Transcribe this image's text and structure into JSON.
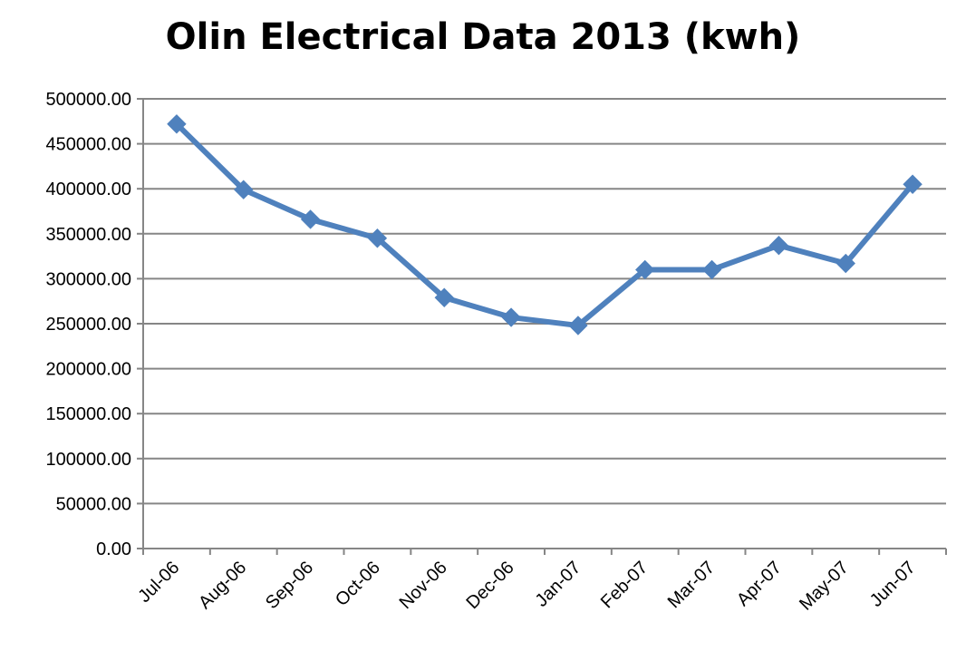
{
  "chart_data": {
    "type": "line",
    "title": "Olin Electrical Data 2013 (kwh)",
    "xlabel": "",
    "ylabel": "",
    "categories": [
      "Jul-06",
      "Aug-06",
      "Sep-06",
      "Oct-06",
      "Nov-06",
      "Dec-06",
      "Jan-07",
      "Feb-07",
      "Mar-07",
      "Apr-07",
      "May-07",
      "Jun-07"
    ],
    "series": [
      {
        "values": [
          472000,
          399000,
          366000,
          345000,
          279000,
          257000,
          248000,
          310000,
          310000,
          337000,
          317000,
          405000
        ],
        "color": "#4F81BD",
        "marker": "diamond"
      }
    ],
    "ylim": [
      0,
      500000
    ],
    "yticks": [
      "0.00",
      "50000.00",
      "100000.00",
      "150000.00",
      "200000.00",
      "250000.00",
      "300000.00",
      "350000.00",
      "400000.00",
      "450000.00",
      "500000.00"
    ],
    "grid": true,
    "legend": "none"
  }
}
